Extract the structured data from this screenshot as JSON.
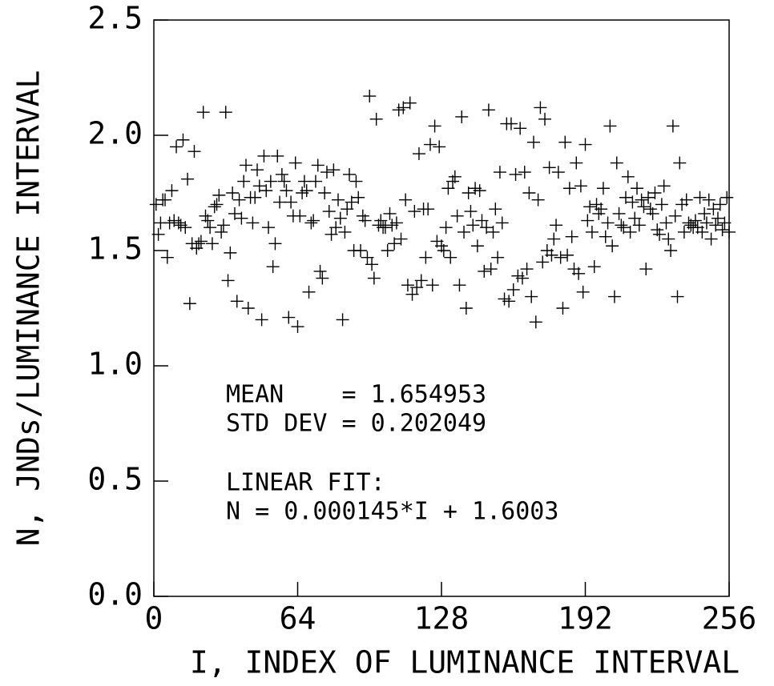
{
  "chart_data": {
    "type": "scatter",
    "xlabel": "I, INDEX OF LUMINANCE INTERVAL",
    "ylabel": "N, JNDs/LUMINANCE INTERVAL",
    "annotations": [
      "MEAN    = 1.654953",
      "STD DEV = 0.202049",
      "LINEAR FIT:",
      "N = 0.000145*I + 1.6003"
    ],
    "xlim": [
      0,
      256
    ],
    "xticks": [
      0,
      64,
      128,
      192,
      256
    ],
    "ylim": [
      0,
      2.5
    ],
    "yticks": [
      {
        "value": 0,
        "label": "0.0"
      },
      {
        "value": 0.5,
        "label": "0.5"
      },
      {
        "value": 1,
        "label": "1.0"
      },
      {
        "value": 1.5,
        "label": "1.5"
      },
      {
        "value": 2,
        "label": "2.0"
      },
      {
        "value": 2.5,
        "label": "2.5"
      }
    ],
    "color": "#000000",
    "x": [
      1,
      2,
      3,
      4,
      5,
      6,
      7,
      8,
      9,
      10,
      11,
      12,
      13,
      14,
      15,
      16,
      17,
      18,
      19,
      20,
      21,
      22,
      23,
      24,
      25,
      26,
      27,
      28,
      29,
      30,
      31,
      32,
      33,
      34,
      35,
      36,
      37,
      38,
      39,
      40,
      41,
      42,
      43,
      44,
      45,
      46,
      47,
      48,
      49,
      50,
      51,
      52,
      53,
      54,
      55,
      56,
      57,
      58,
      59,
      60,
      61,
      62,
      63,
      64,
      65,
      66,
      67,
      68,
      69,
      70,
      71,
      72,
      73,
      74,
      75,
      76,
      77,
      78,
      79,
      80,
      81,
      82,
      83,
      84,
      85,
      86,
      87,
      88,
      89,
      90,
      91,
      92,
      93,
      94,
      95,
      96,
      97,
      98,
      99,
      100,
      101,
      102,
      103,
      104,
      105,
      106,
      107,
      108,
      109,
      110,
      111,
      112,
      113,
      114,
      115,
      116,
      117,
      118,
      119,
      120,
      121,
      122,
      123,
      124,
      125,
      126,
      127,
      128,
      129,
      130,
      131,
      132,
      133,
      134,
      135,
      136,
      137,
      138,
      139,
      140,
      141,
      142,
      143,
      144,
      145,
      146,
      147,
      148,
      149,
      150,
      151,
      152,
      153,
      154,
      155,
      156,
      157,
      158,
      159,
      160,
      161,
      162,
      163,
      164,
      165,
      166,
      167,
      168,
      169,
      170,
      171,
      172,
      173,
      174,
      175,
      176,
      177,
      178,
      179,
      180,
      181,
      182,
      183,
      184,
      185,
      186,
      187,
      188,
      189,
      190,
      191,
      192,
      193,
      194,
      195,
      196,
      197,
      198,
      199,
      200,
      201,
      202,
      203,
      204,
      205,
      206,
      207,
      208,
      209,
      210,
      211,
      212,
      213,
      214,
      215,
      216,
      217,
      218,
      219,
      220,
      221,
      222,
      223,
      224,
      225,
      226,
      227,
      228,
      229,
      230,
      231,
      232,
      233,
      234,
      235,
      236,
      237,
      238,
      239,
      240,
      241,
      242,
      243,
      244,
      245,
      246,
      247,
      248,
      249,
      250,
      251,
      252,
      253,
      254,
      255,
      256
    ],
    "values": [
      1.7,
      1.57,
      1.62,
      1.72,
      1.72,
      1.47,
      1.62,
      1.76,
      1.63,
      1.95,
      1.62,
      1.61,
      1.98,
      1.6,
      1.81,
      1.27,
      1.53,
      1.93,
      1.51,
      1.53,
      1.54,
      2.1,
      1.65,
      1.63,
      1.6,
      1.53,
      1.69,
      1.7,
      1.74,
      1.58,
      1.61,
      2.1,
      1.37,
      1.49,
      1.75,
      1.66,
      1.28,
      1.72,
      1.64,
      1.8,
      1.87,
      1.25,
      1.73,
      1.62,
      1.73,
      1.85,
      1.78,
      1.2,
      1.91,
      1.76,
      1.6,
      1.8,
      1.43,
      1.53,
      1.91,
      1.71,
      1.83,
      1.8,
      1.76,
      1.21,
      1.71,
      1.65,
      1.88,
      1.17,
      1.65,
      1.75,
      1.8,
      1.76,
      1.32,
      1.62,
      1.63,
      1.8,
      1.87,
      1.41,
      1.38,
      1.75,
      1.84,
      1.67,
      1.57,
      1.85,
      1.6,
      1.72,
      1.64,
      1.2,
      1.58,
      1.68,
      1.83,
      1.71,
      1.5,
      1.8,
      1.73,
      1.5,
      1.65,
      1.63,
      1.47,
      2.17,
      1.44,
      1.38,
      2.07,
      1.61,
      1.63,
      1.6,
      1.6,
      1.5,
      1.66,
      1.61,
      1.53,
      1.62,
      2.11,
      1.55,
      2.12,
      1.72,
      1.35,
      2.14,
      1.31,
      1.67,
      1.34,
      1.92,
      1.37,
      1.68,
      1.47,
      1.68,
      1.96,
      1.35,
      2.04,
      1.54,
      1.95,
      1.52,
      1.5,
      1.6,
      1.77,
      1.47,
      1.8,
      1.82,
      1.65,
      1.35,
      2.08,
      1.58,
      1.25,
      1.75,
      1.67,
      1.61,
      1.77,
      1.52,
      1.76,
      1.63,
      1.41,
      1.6,
      2.11,
      1.42,
      1.58,
      1.68,
      1.47,
      1.84,
      1.62,
      1.29,
      2.05,
      1.28,
      2.05,
      1.33,
      1.83,
      1.39,
      2.03,
      1.38,
      1.84,
      1.42,
      1.75,
      1.3,
      1.97,
      1.19,
      1.72,
      2.12,
      1.45,
      2.07,
      1.5,
      1.86,
      1.48,
      1.55,
      1.61,
      1.84,
      1.47,
      1.25,
      1.97,
      1.48,
      1.77,
      1.56,
      1.42,
      1.88,
      1.4,
      1.78,
      1.32,
      1.96,
      1.63,
      1.69,
      1.58,
      1.43,
      1.7,
      1.66,
      1.68,
      1.77,
      1.56,
      1.62,
      2.04,
      1.52,
      1.3,
      1.88,
      1.66,
      1.61,
      1.6,
      1.73,
      1.82,
      1.58,
      1.71,
      1.64,
      1.77,
      1.61,
      1.72,
      1.69,
      1.42,
      1.73,
      1.68,
      1.66,
      1.75,
      1.59,
      1.57,
      1.7,
      1.78,
      1.62,
      1.55,
      1.5,
      2.04,
      1.65,
      1.3,
      1.88,
      1.7,
      1.58,
      1.72,
      1.62,
      1.61,
      1.6,
      1.63,
      1.6,
      1.73,
      1.58,
      1.66,
      1.62,
      1.72,
      1.55,
      1.68,
      1.61,
      1.64,
      1.7,
      1.59,
      1.62,
      1.73,
      1.58
    ]
  }
}
